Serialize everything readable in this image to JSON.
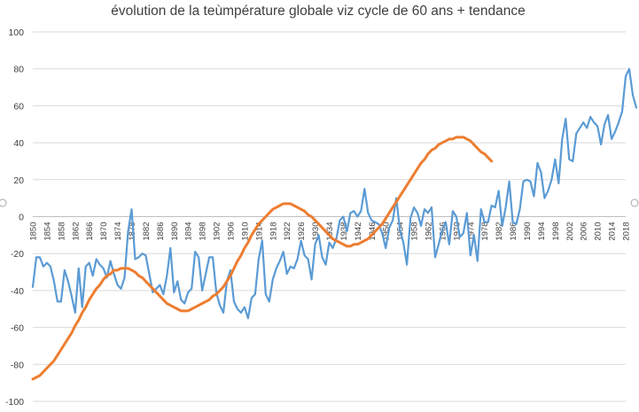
{
  "colors": {
    "series_observed": "#5B9BD5",
    "series_trend": "#ED7D31",
    "title": "#404040",
    "tick": "#404040"
  },
  "chart_data": {
    "type": "line",
    "title": "évolution de la teùmpérature globale viz cycle de 60 ans + tendance",
    "xlabel": "",
    "ylabel": "",
    "ylim": [
      -100,
      100
    ],
    "yticks": [
      100,
      80,
      60,
      40,
      20,
      0,
      -20,
      -40,
      -60,
      -80,
      -100
    ],
    "xlim": [
      1850,
      2018
    ],
    "x_tick_labels": [
      "1850",
      "1854",
      "1858",
      "1862",
      "1866",
      "1870",
      "1874",
      "1878",
      "1882",
      "1886",
      "1890",
      "1894",
      "1898",
      "1902",
      "1906",
      "1910",
      "1914",
      "1918",
      "1922",
      "1926",
      "1930",
      "1934",
      "1938",
      "1942",
      "1946",
      "1950",
      "1954",
      "1958",
      "1962",
      "1966",
      "1970",
      "1974",
      "1978",
      "1982",
      "1986",
      "1990",
      "1994",
      "1998",
      "2002",
      "2006",
      "2010",
      "2014",
      "2018"
    ],
    "grid": true,
    "legend": "none",
    "series": [
      {
        "name": "température globale",
        "color_key": "series_observed",
        "x_start": 1850,
        "values": [
          -38,
          -22,
          -22,
          -27,
          -25,
          -27,
          -35,
          -46,
          -46,
          -29,
          -35,
          -43,
          -52,
          -28,
          -49,
          -27,
          -25,
          -32,
          -23,
          -26,
          -28,
          -33,
          -24,
          -31,
          -37,
          -39,
          -33,
          -8,
          4,
          -23,
          -22,
          -20,
          -21,
          -31,
          -41,
          -39,
          -37,
          -42,
          -32,
          -17,
          -41,
          -35,
          -45,
          -47,
          -41,
          -39,
          -19,
          -22,
          -40,
          -31,
          -22,
          -22,
          -41,
          -48,
          -52,
          -35,
          -29,
          -46,
          -50,
          -52,
          -49,
          -55,
          -44,
          -42,
          -23,
          -13,
          -42,
          -46,
          -34,
          -28,
          -24,
          -19,
          -31,
          -27,
          -28,
          -23,
          -13,
          -21,
          -23,
          -34,
          -15,
          -10,
          -22,
          -26,
          -14,
          -17,
          -12,
          -2,
          0,
          -8,
          2,
          3,
          0,
          3,
          15,
          2,
          -2,
          -3,
          -4,
          -9,
          -17,
          -6,
          -2,
          10,
          -7,
          -14,
          -26,
          -1,
          5,
          2,
          -5,
          4,
          2,
          5,
          -22,
          -15,
          -7,
          -3,
          -15,
          3,
          0,
          -11,
          -9,
          2,
          -21,
          -10,
          -24,
          4,
          -3,
          -3,
          6,
          5,
          14,
          -5,
          5,
          19,
          -3,
          -4,
          4,
          19,
          20,
          19,
          11,
          29,
          24,
          10,
          14,
          20,
          31,
          18,
          42,
          53,
          31,
          30,
          45,
          48,
          51,
          48,
          54,
          51,
          49,
          39,
          50,
          55,
          42,
          46,
          51,
          57,
          76,
          80,
          66,
          59
        ]
      },
      {
        "name": "cycle de 60 ans + tendance",
        "color_key": "series_trend",
        "x_start": 1850,
        "values": [
          -88,
          -87,
          -86,
          -84,
          -82,
          -80,
          -78,
          -75,
          -72,
          -69,
          -66,
          -63,
          -59,
          -56,
          -52,
          -49,
          -45,
          -42,
          -39,
          -37,
          -34,
          -32,
          -31,
          -29,
          -29,
          -28,
          -28,
          -28,
          -29,
          -30,
          -32,
          -33,
          -35,
          -37,
          -39,
          -41,
          -43,
          -45,
          -47,
          -48,
          -49,
          -50,
          -51,
          -51,
          -51,
          -50,
          -49,
          -48,
          -47,
          -46,
          -45,
          -43,
          -42,
          -40,
          -38,
          -35,
          -32,
          -28,
          -24,
          -21,
          -17,
          -14,
          -10,
          -7,
          -4,
          -2,
          0,
          2,
          4,
          5,
          6,
          7,
          7,
          7,
          6,
          5,
          4,
          3,
          1,
          0,
          -2,
          -4,
          -6,
          -8,
          -10,
          -12,
          -13,
          -14,
          -15,
          -16,
          -16,
          -15,
          -15,
          -14,
          -13,
          -12,
          -10,
          -8,
          -6,
          -4,
          -1,
          2,
          5,
          8,
          11,
          14,
          17,
          20,
          23,
          26,
          29,
          31,
          34,
          36,
          37,
          39,
          40,
          41,
          42,
          42,
          43,
          43,
          43,
          42,
          41,
          39,
          37,
          35,
          34,
          32,
          30
        ]
      }
    ]
  }
}
